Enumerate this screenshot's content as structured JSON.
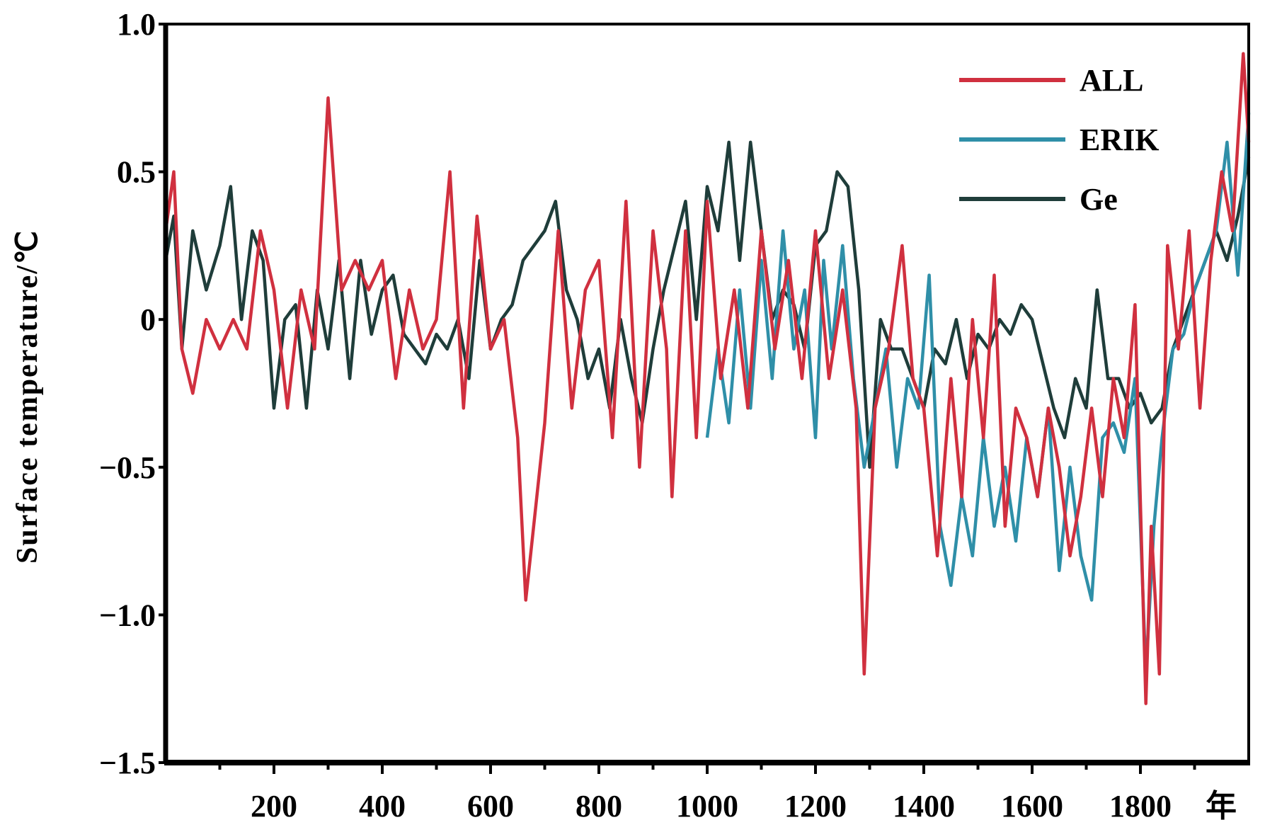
{
  "chart_data": {
    "type": "line",
    "ylabel": "Surface temperature/℃",
    "xunit": "年",
    "xlim": [
      0,
      2000
    ],
    "ylim": [
      -1.5,
      1.0
    ],
    "xticks": [
      "200",
      "400",
      "600",
      "800",
      "1000",
      "1200",
      "1400",
      "1600",
      "1800"
    ],
    "yticks": [
      "1.0",
      "0.5",
      "0",
      "-0.5",
      "-1.0",
      "-1.5"
    ],
    "grid": false,
    "legend": "top-right",
    "series": [
      {
        "name": "ALL",
        "color": "#d0303f",
        "x": [
          0,
          15,
          30,
          50,
          75,
          100,
          125,
          150,
          175,
          200,
          225,
          250,
          275,
          300,
          325,
          350,
          375,
          400,
          425,
          450,
          475,
          500,
          525,
          550,
          575,
          600,
          625,
          650,
          665,
          700,
          725,
          750,
          775,
          800,
          825,
          850,
          875,
          900,
          925,
          935,
          960,
          980,
          1000,
          1025,
          1050,
          1075,
          1100,
          1125,
          1150,
          1175,
          1200,
          1225,
          1250,
          1275,
          1290,
          1310,
          1335,
          1360,
          1380,
          1400,
          1425,
          1450,
          1470,
          1490,
          1510,
          1530,
          1550,
          1570,
          1590,
          1610,
          1630,
          1650,
          1670,
          1690,
          1710,
          1730,
          1750,
          1770,
          1790,
          1810,
          1820,
          1835,
          1850,
          1870,
          1890,
          1910,
          1930,
          1950,
          1970,
          1990,
          2000
        ],
        "y": [
          0.3,
          0.5,
          -0.1,
          -0.25,
          0.0,
          -0.1,
          0.0,
          -0.1,
          0.3,
          0.1,
          -0.3,
          0.1,
          -0.1,
          0.75,
          0.1,
          0.2,
          0.1,
          0.2,
          -0.2,
          0.1,
          -0.1,
          0.0,
          0.5,
          -0.3,
          0.35,
          -0.1,
          0.0,
          -0.4,
          -0.95,
          -0.35,
          0.3,
          -0.3,
          0.1,
          0.2,
          -0.4,
          0.4,
          -0.5,
          0.3,
          -0.1,
          -0.6,
          0.3,
          -0.4,
          0.4,
          -0.2,
          0.1,
          -0.3,
          0.3,
          -0.1,
          0.2,
          -0.2,
          0.3,
          -0.2,
          0.1,
          -0.3,
          -1.2,
          -0.3,
          -0.1,
          0.25,
          -0.2,
          -0.3,
          -0.8,
          -0.2,
          -0.6,
          0.0,
          -0.4,
          0.15,
          -0.7,
          -0.3,
          -0.4,
          -0.6,
          -0.3,
          -0.5,
          -0.8,
          -0.6,
          -0.3,
          -0.6,
          -0.2,
          -0.4,
          0.05,
          -1.3,
          -0.7,
          -1.2,
          0.25,
          -0.1,
          0.3,
          -0.3,
          0.2,
          0.5,
          0.3,
          0.9,
          0.6
        ]
      },
      {
        "name": "ERIK",
        "color": "#2f8fa8",
        "x": [
          1000,
          1020,
          1040,
          1060,
          1080,
          1100,
          1120,
          1140,
          1160,
          1180,
          1200,
          1215,
          1230,
          1250,
          1270,
          1290,
          1310,
          1330,
          1350,
          1370,
          1390,
          1410,
          1430,
          1450,
          1470,
          1490,
          1510,
          1530,
          1550,
          1570,
          1590,
          1610,
          1630,
          1650,
          1670,
          1690,
          1710,
          1730,
          1750,
          1770,
          1790,
          1810,
          1825,
          1840,
          1860,
          1880,
          1900,
          1920,
          1940,
          1960,
          1980,
          2000
        ],
        "y": [
          -0.4,
          -0.1,
          -0.35,
          0.1,
          -0.3,
          0.2,
          -0.2,
          0.3,
          -0.1,
          0.1,
          -0.4,
          0.2,
          -0.1,
          0.25,
          -0.2,
          -0.5,
          -0.3,
          -0.1,
          -0.5,
          -0.2,
          -0.3,
          0.15,
          -0.7,
          -0.9,
          -0.6,
          -0.8,
          -0.4,
          -0.7,
          -0.5,
          -0.75,
          -0.4,
          -0.6,
          -0.3,
          -0.85,
          -0.5,
          -0.8,
          -0.95,
          -0.4,
          -0.35,
          -0.45,
          -0.2,
          -1.2,
          -0.7,
          -0.4,
          -0.1,
          -0.05,
          0.1,
          0.2,
          0.3,
          0.6,
          0.15,
          0.7
        ]
      },
      {
        "name": "Ge",
        "color": "#1f3d3a",
        "x": [
          0,
          15,
          30,
          50,
          75,
          100,
          120,
          140,
          160,
          180,
          200,
          220,
          240,
          260,
          280,
          300,
          320,
          340,
          360,
          380,
          400,
          420,
          440,
          460,
          480,
          500,
          520,
          540,
          560,
          580,
          600,
          620,
          640,
          660,
          680,
          700,
          720,
          740,
          760,
          780,
          800,
          820,
          840,
          860,
          880,
          900,
          920,
          940,
          960,
          980,
          1000,
          1020,
          1040,
          1060,
          1080,
          1100,
          1120,
          1140,
          1160,
          1180,
          1200,
          1220,
          1240,
          1260,
          1280,
          1300,
          1320,
          1340,
          1360,
          1380,
          1400,
          1420,
          1440,
          1460,
          1480,
          1500,
          1520,
          1540,
          1560,
          1580,
          1600,
          1620,
          1640,
          1660,
          1680,
          1700,
          1720,
          1740,
          1760,
          1780,
          1800,
          1820,
          1840,
          1860,
          1880,
          1900,
          1920,
          1940,
          1960,
          1980,
          2000
        ],
        "y": [
          0.2,
          0.35,
          -0.1,
          0.3,
          0.1,
          0.25,
          0.45,
          0.0,
          0.3,
          0.2,
          -0.3,
          0.0,
          0.05,
          -0.3,
          0.1,
          -0.1,
          0.2,
          -0.2,
          0.2,
          -0.05,
          0.1,
          0.15,
          -0.05,
          -0.1,
          -0.15,
          -0.05,
          -0.1,
          0.0,
          -0.2,
          0.2,
          -0.1,
          0.0,
          0.05,
          0.2,
          0.25,
          0.3,
          0.4,
          0.1,
          0.0,
          -0.2,
          -0.1,
          -0.3,
          0.0,
          -0.2,
          -0.35,
          -0.1,
          0.1,
          0.25,
          0.4,
          0.0,
          0.45,
          0.3,
          0.6,
          0.2,
          0.6,
          0.3,
          0.0,
          0.1,
          0.05,
          -0.1,
          0.25,
          0.3,
          0.5,
          0.45,
          0.1,
          -0.5,
          0.0,
          -0.1,
          -0.1,
          -0.2,
          -0.3,
          -0.1,
          -0.15,
          0.0,
          -0.2,
          -0.05,
          -0.1,
          0.0,
          -0.05,
          0.05,
          0.0,
          -0.15,
          -0.3,
          -0.4,
          -0.2,
          -0.3,
          0.1,
          -0.2,
          -0.2,
          -0.3,
          -0.25,
          -0.35,
          -0.3,
          -0.1,
          0.0,
          0.1,
          0.2,
          0.3,
          0.2,
          0.35,
          0.55
        ]
      }
    ]
  }
}
